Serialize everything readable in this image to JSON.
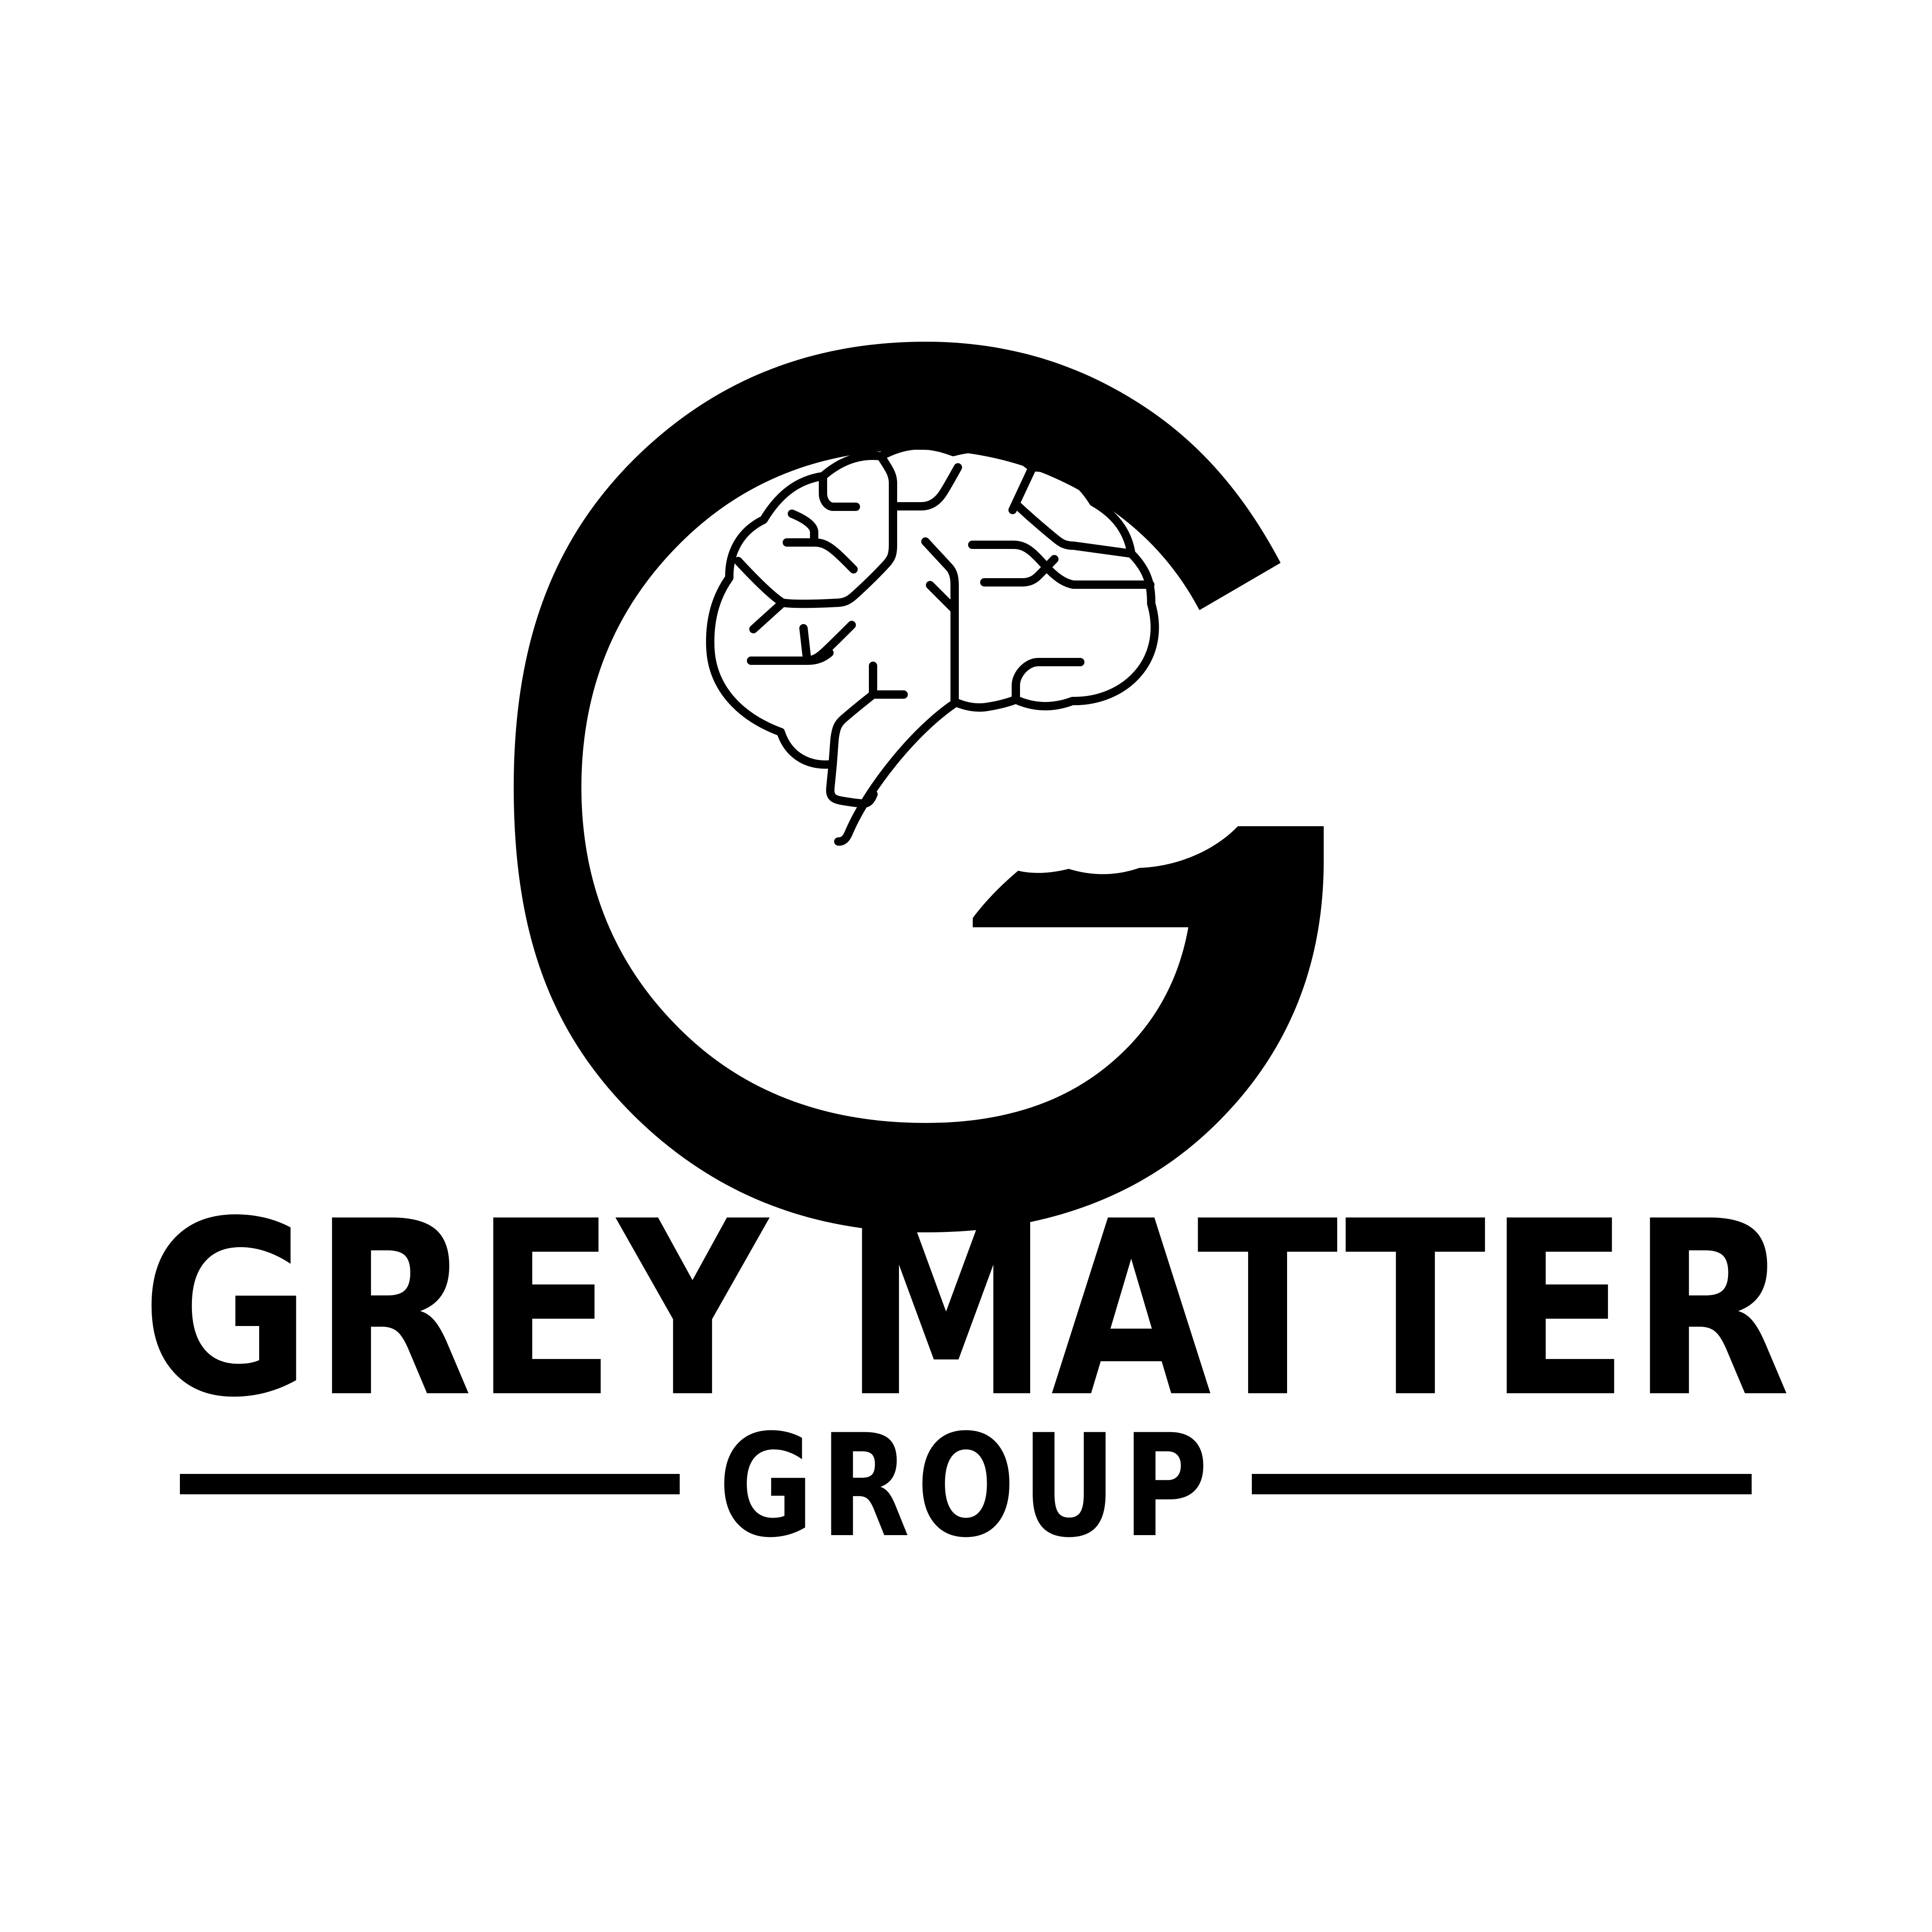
{
  "brand": {
    "name": "GREY MATTER",
    "tagline": "GROUP",
    "ink_color": "#000000",
    "background_color": "#ffffff"
  },
  "icons": {
    "mark": "letter-g-with-circuit-brain-icon"
  }
}
